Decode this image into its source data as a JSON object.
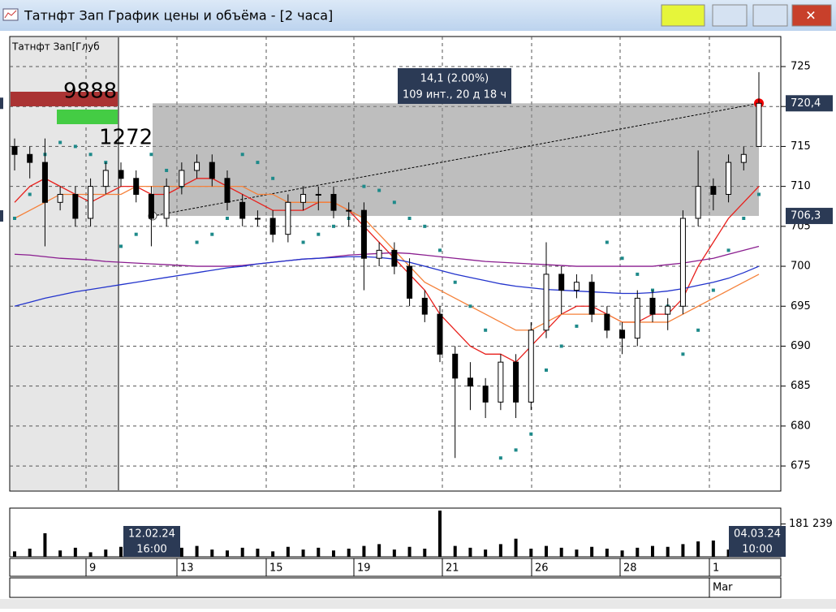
{
  "window": {
    "title": "Татнфт Зап График цены и объёма - [2 часа]"
  },
  "chart_data": {
    "type": "candlestick",
    "label": "Татнфт Зап[Глуб",
    "ylim": [
      671.86,
      728.76
    ],
    "yticks": [
      675,
      680,
      685,
      690,
      695,
      700,
      705,
      710,
      715,
      720,
      725
    ],
    "grid": true,
    "open": [
      715,
      714,
      713,
      708,
      709,
      706,
      710,
      712,
      711,
      709,
      706,
      710,
      712,
      713,
      711,
      708,
      706,
      706,
      704,
      708,
      709,
      709,
      707,
      707,
      701,
      702,
      700,
      696,
      694,
      689,
      686,
      685,
      683,
      688,
      683,
      692,
      699,
      697,
      698,
      694,
      692,
      691,
      696,
      694,
      695,
      706,
      710,
      709,
      713,
      715
    ],
    "high": [
      716,
      715,
      716,
      710,
      710,
      711,
      713,
      713,
      712,
      710,
      711,
      713,
      714,
      714,
      712,
      709,
      707,
      707,
      709,
      710,
      710,
      710,
      708,
      708,
      703,
      703,
      701,
      697,
      695,
      690,
      688,
      686,
      689,
      689,
      693,
      703,
      700,
      699,
      699,
      695,
      693,
      697,
      697,
      696,
      707,
      714.5,
      711,
      714,
      715,
      724.3
    ],
    "low": [
      712,
      711,
      702.5,
      707,
      705,
      705,
      709,
      710,
      708,
      702.5,
      705,
      709,
      711,
      710,
      707,
      705,
      705,
      703,
      703,
      707,
      707,
      706,
      705,
      697,
      700,
      699,
      695,
      693,
      688,
      676,
      682,
      681,
      682,
      681,
      682,
      691,
      694,
      696,
      693,
      691,
      689,
      690,
      693,
      692,
      694,
      705,
      707,
      708,
      712,
      715
    ],
    "close": [
      714,
      713,
      708,
      709,
      706,
      710,
      712,
      711,
      709,
      706,
      710,
      712,
      713,
      711,
      708,
      706,
      706,
      704,
      708,
      709,
      709,
      707,
      707,
      701,
      702,
      700,
      696,
      694,
      689,
      686,
      685,
      683,
      688,
      683,
      692,
      699,
      697,
      698,
      694,
      692,
      691,
      696,
      694,
      695,
      706,
      710,
      709,
      713,
      714,
      720.4
    ],
    "lines": [
      {
        "color": "#e8201c",
        "values": [
          708,
          710,
          711,
          710,
          709,
          708,
          709,
          710,
          710,
          709,
          709,
          710,
          711,
          711,
          710,
          709,
          708,
          707,
          707,
          707,
          708,
          708,
          707,
          705,
          703,
          701,
          699,
          697,
          694,
          692,
          690,
          689,
          689,
          688,
          690,
          692,
          694,
          695,
          695,
          694,
          693,
          693,
          694,
          694,
          696,
          700,
          703,
          706,
          708,
          710
        ]
      },
      {
        "color": "#f5813a",
        "values": [
          706,
          707,
          708,
          709,
          709,
          709,
          709,
          709,
          710,
          710,
          710,
          710,
          710,
          710,
          710,
          710,
          709,
          709,
          708,
          708,
          708,
          708,
          707,
          706,
          704,
          702,
          700,
          698,
          697,
          696,
          695,
          694,
          693,
          692,
          692,
          693,
          694,
          694,
          694,
          694,
          693,
          693,
          693,
          693,
          694,
          695,
          696,
          697,
          698,
          699
        ]
      },
      {
        "color": "#8a1d8f",
        "values": [
          701.5,
          701.4,
          701.2,
          701,
          700.9,
          700.8,
          700.6,
          700.5,
          700.4,
          700.3,
          700.2,
          700.1,
          700,
          700,
          700,
          700.1,
          700.3,
          700.5,
          700.7,
          700.9,
          701,
          701.2,
          701.4,
          701.5,
          701.6,
          701.7,
          701.6,
          701.4,
          701.2,
          701,
          700.8,
          700.6,
          700.5,
          700.4,
          700.3,
          700.2,
          700.1,
          700,
          700,
          700,
          700,
          700,
          700,
          700.2,
          700.4,
          700.7,
          701,
          701.5,
          702,
          702.5
        ]
      },
      {
        "color": "#2233cc",
        "values": [
          695,
          695.5,
          696,
          696.4,
          696.8,
          697.1,
          697.4,
          697.7,
          698,
          698.3,
          698.6,
          698.9,
          699.2,
          699.5,
          699.8,
          700,
          700.3,
          700.5,
          700.7,
          700.9,
          701,
          701.1,
          701.2,
          701.2,
          701.1,
          700.9,
          700.5,
          700,
          699.5,
          699,
          698.6,
          698.2,
          697.8,
          697.5,
          697.3,
          697.1,
          697,
          696.9,
          696.8,
          696.7,
          696.6,
          696.6,
          696.7,
          696.9,
          697.2,
          697.6,
          698,
          698.5,
          699.2,
          700
        ]
      }
    ],
    "sar": {
      "color": "#1e8a8a",
      "values": [
        706,
        709,
        714,
        715.5,
        715,
        714,
        713,
        702.5,
        704,
        714,
        712,
        710,
        703,
        704,
        706,
        714,
        713,
        711,
        707,
        703,
        704,
        705,
        706,
        710,
        709.5,
        708,
        706,
        705,
        702,
        698,
        695,
        692,
        676,
        677,
        679,
        687,
        690,
        692.5,
        697,
        703,
        701,
        699,
        697,
        695,
        689,
        692,
        697,
        702,
        706,
        709
      ]
    },
    "depth": {
      "ask": 9888,
      "bid": 1272
    },
    "tooltip": [
      "14,1 (2.00%)",
      "109 инт., 20 д 18 ч"
    ],
    "price_markers": [
      {
        "value": 720.4,
        "label": "720,4"
      },
      {
        "value": 706.3,
        "label": "706,3"
      }
    ],
    "volume": {
      "ylim": [
        0,
        260000
      ],
      "marker": {
        "value": 181239,
        "label": "181 239"
      },
      "values": [
        30000,
        45000,
        130000,
        35000,
        50000,
        25000,
        40000,
        55000,
        35000,
        45000,
        30000,
        50000,
        60000,
        40000,
        35000,
        50000,
        45000,
        30000,
        55000,
        40000,
        50000,
        35000,
        45000,
        60000,
        70000,
        40000,
        55000,
        45000,
        255000,
        60000,
        50000,
        40000,
        70000,
        100000,
        45000,
        60000,
        50000,
        40000,
        55000,
        45000,
        35000,
        50000,
        60000,
        55000,
        70000,
        85000,
        90000,
        40000,
        50000,
        55000
      ]
    },
    "date_axis": {
      "labels": [
        "9",
        "13",
        "15",
        "19",
        "21",
        "26",
        "28",
        "1"
      ],
      "month": "Mar"
    },
    "cursor_dates": [
      [
        "12.02.24",
        "16:00"
      ],
      [
        "04.03.24",
        "10:00"
      ]
    ]
  }
}
